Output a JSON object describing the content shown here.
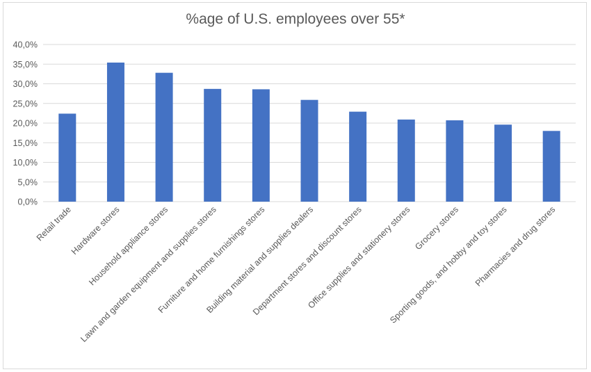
{
  "chart_data": {
    "type": "bar",
    "title": "%age of U.S. employees over 55*",
    "xlabel": "",
    "ylabel": "",
    "categories": [
      "Retail trade",
      "Hardware stores",
      "Household appliance stores",
      "Lawn and garden equipment and supplies stores",
      "Furniture and home furnishings stores",
      "Building material and supplies dealers",
      "Department stores and discount stores",
      "Office supplies and stationery stores",
      "Grocery stores",
      "Sporting goods, and hobby and toy stores",
      "Pharmacies and drug stores"
    ],
    "values": [
      22.4,
      35.4,
      32.8,
      28.7,
      28.6,
      25.9,
      22.9,
      20.9,
      20.7,
      19.6,
      18.0
    ],
    "ylim": [
      0,
      40
    ],
    "yticks": [
      "0,0%",
      "5,0%",
      "10,0%",
      "15,0%",
      "20,0%",
      "25,0%",
      "30,0%",
      "35,0%",
      "40,0%"
    ],
    "grid": true,
    "legend": "none",
    "bar_color": "#4472c4",
    "grid_color": "#d9d9d9",
    "text_color": "#595959"
  }
}
